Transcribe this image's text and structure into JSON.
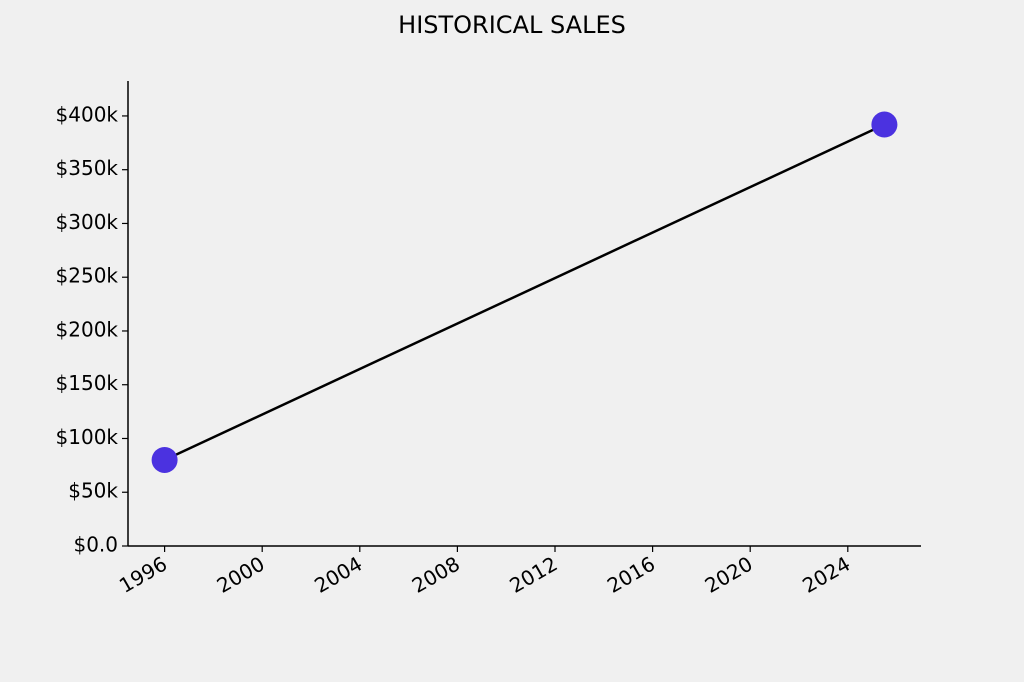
{
  "chart_data": {
    "type": "line",
    "title": "HISTORICAL SALES",
    "x": [
      1996,
      2025.5
    ],
    "series": [
      {
        "color": "#4b32e0",
        "line_color": "#000000",
        "values": [
          80000,
          392000
        ]
      }
    ],
    "xlim": [
      1994.5,
      2027
    ],
    "xticks": [
      1996,
      2000,
      2004,
      2008,
      2012,
      2016,
      2020,
      2024
    ],
    "ylim": [
      0,
      432500
    ],
    "yticks": [
      {
        "value": 0,
        "label": "$0.0"
      },
      {
        "value": 50000,
        "label": "$50k"
      },
      {
        "value": 100000,
        "label": "$100k"
      },
      {
        "value": 150000,
        "label": "$150k"
      },
      {
        "value": 200000,
        "label": "$200k"
      },
      {
        "value": 250000,
        "label": "$250k"
      },
      {
        "value": 300000,
        "label": "$300k"
      },
      {
        "value": 350000,
        "label": "$350k"
      },
      {
        "value": 400000,
        "label": "$400k"
      }
    ],
    "grid": false
  }
}
